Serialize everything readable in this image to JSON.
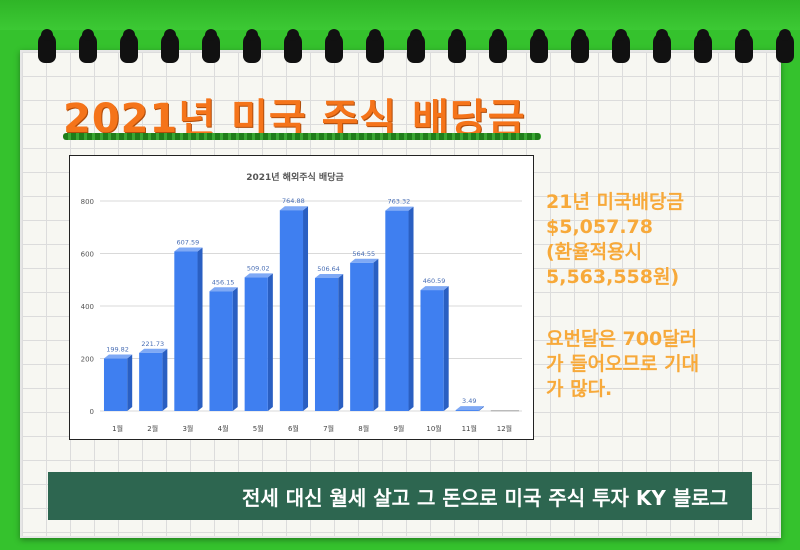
{
  "page": {
    "title": "2021년 미국 주식 배당금",
    "colors": {
      "frame": "#35c22d",
      "title": "#f5741a",
      "note": "#f7a93a",
      "banner": "#2d6650",
      "bar": "#3f7ff0",
      "bar_side": "#2a5fc2",
      "bar_top": "#7fa9f5"
    }
  },
  "chart_data": {
    "type": "bar",
    "title": "2021년 해외주식 배당금",
    "categories": [
      "1월",
      "2월",
      "3월",
      "4월",
      "5월",
      "6월",
      "7월",
      "8월",
      "9월",
      "10월",
      "11월",
      "12월"
    ],
    "values": [
      199.82,
      221.73,
      607.59,
      456.15,
      509.02,
      764.88,
      506.64,
      564.55,
      763.32,
      460.59,
      3.49,
      0
    ],
    "data_labels": [
      "199.82",
      "221.73",
      "607.59",
      "456.15",
      "509.02",
      "764.88",
      "506.64",
      "564.55",
      "763.32",
      "460.59",
      "3.49",
      ""
    ],
    "yticks": [
      "0",
      "200",
      "400",
      "600",
      "800"
    ],
    "ylim": [
      0,
      800
    ],
    "grid": true,
    "legend": "none",
    "style": "3d"
  },
  "notes": {
    "total": [
      "21년 미국배당금",
      "$5,057.78",
      "(환율적용시",
      "5,563,558원)"
    ],
    "outlook": [
      "요번달은 700달러",
      "가 들어오므로 기대",
      "가 많다."
    ]
  },
  "banner": {
    "text": "전세 대신 월세 살고 그 돈으로 미국 주식 투자 KY 블로그"
  }
}
